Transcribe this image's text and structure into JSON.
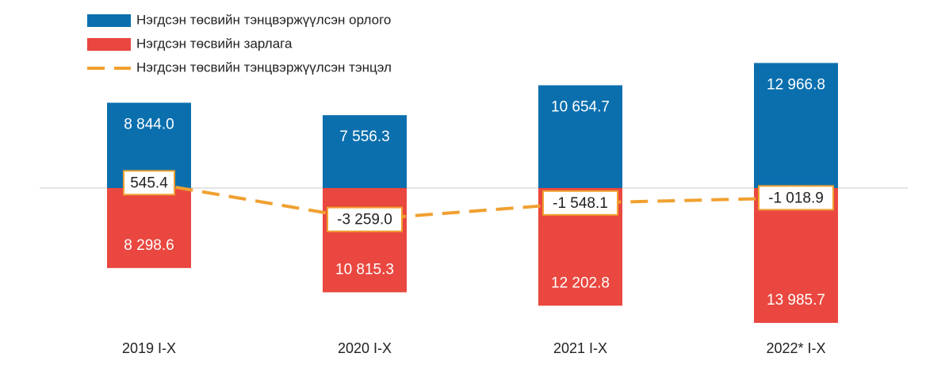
{
  "chart_data": {
    "type": "bar",
    "categories": [
      "2019 I-X",
      "2020 I-X",
      "2021 I-X",
      "2022* I-X"
    ],
    "series": [
      {
        "name": "Нэгдсэн төсвийн тэнцвэржүүлсэн  орлого",
        "color": "#0b6fae",
        "type": "bar",
        "values": [
          8844.0,
          7556.3,
          10654.7,
          12966.8
        ],
        "value_labels": [
          "8 844.0",
          "7 556.3",
          "10 654.7",
          "12 966.8"
        ]
      },
      {
        "name": "Нэгдсэн төсвийн зарлага",
        "color": "#e9473f",
        "type": "bar",
        "values": [
          -8298.6,
          -10815.3,
          -12202.8,
          -13985.7
        ],
        "value_labels": [
          "8 298.6",
          "10 815.3",
          "12 202.8",
          "13 985.7"
        ]
      },
      {
        "name": "Нэгдсэн төсвийн тэнцвэржүүлсэн  тэнцэл",
        "color": "#f0a030",
        "type": "line",
        "values": [
          545.4,
          -3259.0,
          -1548.1,
          -1018.9
        ],
        "value_labels": [
          "545.4",
          "-3 259.0",
          "-1 548.1",
          "-1 018.9"
        ]
      }
    ]
  }
}
